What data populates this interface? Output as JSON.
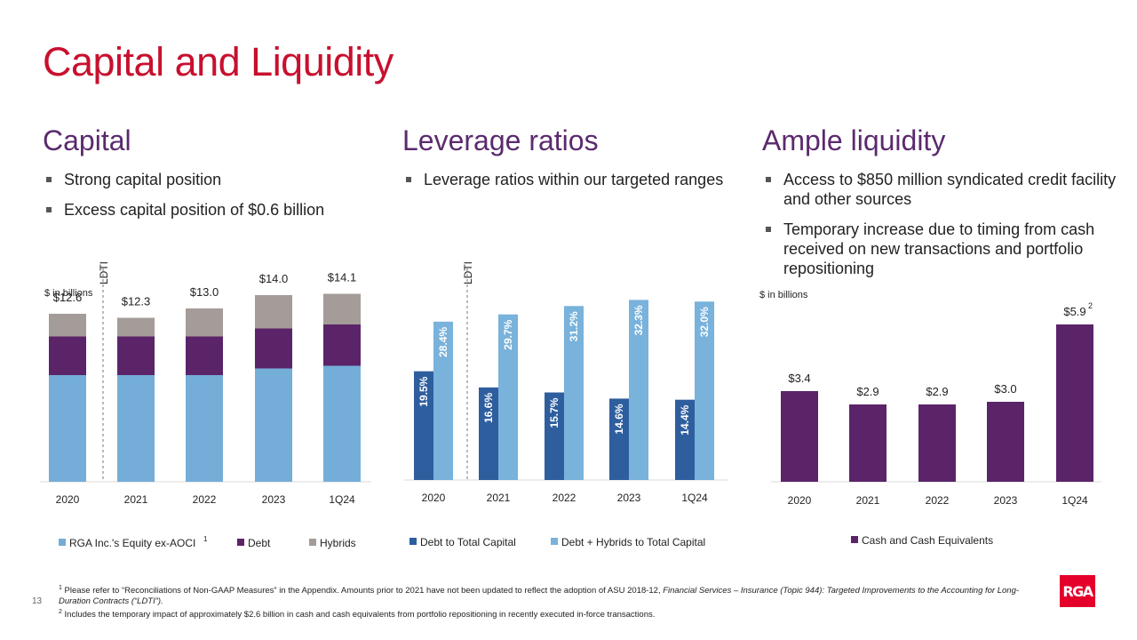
{
  "page": {
    "title": "Capital and Liquidity",
    "page_number": "13",
    "logo_text": "RGA"
  },
  "sections": {
    "capital": {
      "heading": "Capital",
      "bullets": [
        "Strong capital position",
        "Excess capital position of $0.6 billion"
      ]
    },
    "leverage": {
      "heading": "Leverage ratios",
      "bullets": [
        "Leverage ratios within our targeted ranges"
      ]
    },
    "liquidity": {
      "heading": "Ample liquidity",
      "bullets": [
        "Access to $850 million syndicated credit facility and other sources",
        "Temporary increase due to timing from cash received on new transactions and portfolio repositioning"
      ]
    }
  },
  "footnotes": {
    "fn1_marker": "1",
    "fn1_a": "Please refer to “Reconciliations of Non-GAAP Measures” in the Appendix. Amounts prior to 2021 have not been updated to reflect the adoption of ASU 2018-12, ",
    "fn1_italic": "Financial Services – Insurance (Topic 944): Targeted Improvements to the Accounting for Long-Duration Contracts (“LDTI”).",
    "fn2_marker": "2",
    "fn2": "Includes the temporary impact of approximately $2.6 billion in cash and cash equivalents from portfolio repositioning in recently executed in-force transactions."
  },
  "colors": {
    "equity": "#74aed8",
    "debt": "#5b2469",
    "hybrids": "#a49c98",
    "debt_ratio": "#2e5e9e",
    "hybrid_ratio": "#79b2db",
    "cash": "#5b2469",
    "title": "#c8102e",
    "heading": "#5b2a6e"
  },
  "chart_data": [
    {
      "type": "bar",
      "stacked": true,
      "title": "Capital",
      "unit_label": "$ in billions",
      "divider_label": "LDTI",
      "categories": [
        "2020",
        "2021",
        "2022",
        "2023",
        "1Q24"
      ],
      "series": [
        {
          "name": "RGA Inc.'s Equity ex-AOCI",
          "superscript": "1",
          "values": [
            8.0,
            8.0,
            8.0,
            8.5,
            8.7
          ]
        },
        {
          "name": "Debt",
          "superscript": "",
          "values": [
            2.9,
            2.9,
            2.9,
            3.0,
            3.1
          ]
        },
        {
          "name": "Hybrids",
          "superscript": "",
          "values": [
            1.7,
            1.4,
            2.1,
            2.5,
            2.3
          ]
        }
      ],
      "totals": [
        "$12.6",
        "$12.3",
        "$13.0",
        "$14.0",
        "$14.1"
      ],
      "ylim": [
        0,
        16
      ]
    },
    {
      "type": "bar",
      "title": "Leverage ratios",
      "divider_label": "LDTI",
      "categories": [
        "2020",
        "2021",
        "2022",
        "2023",
        "1Q24"
      ],
      "series": [
        {
          "name": "Debt to Total Capital",
          "values": [
            19.5,
            16.6,
            15.7,
            14.6,
            14.4
          ],
          "labels": [
            "19.5%",
            "16.6%",
            "15.7%",
            "14.6%",
            "14.4%"
          ]
        },
        {
          "name": "Debt + Hybrids to Total Capital",
          "values": [
            28.4,
            29.7,
            31.2,
            32.3,
            32.0
          ],
          "labels": [
            "28.4%",
            "29.7%",
            "31.2%",
            "32.3%",
            "32.0%"
          ]
        }
      ],
      "ylim": [
        0,
        33
      ]
    },
    {
      "type": "bar",
      "title": "Ample liquidity",
      "unit_label": "$ in billions",
      "categories": [
        "2020",
        "2021",
        "2022",
        "2023",
        "1Q24"
      ],
      "series": [
        {
          "name": "Cash and Cash Equivalents",
          "values": [
            3.4,
            2.9,
            2.9,
            3.0,
            5.9
          ],
          "labels": [
            "$3.4",
            "$2.9",
            "$2.9",
            "$3.0",
            "$5.9"
          ],
          "label_superscripts": [
            "",
            "",
            "",
            "",
            "2"
          ]
        }
      ],
      "ylim": [
        0,
        7.5
      ]
    }
  ]
}
